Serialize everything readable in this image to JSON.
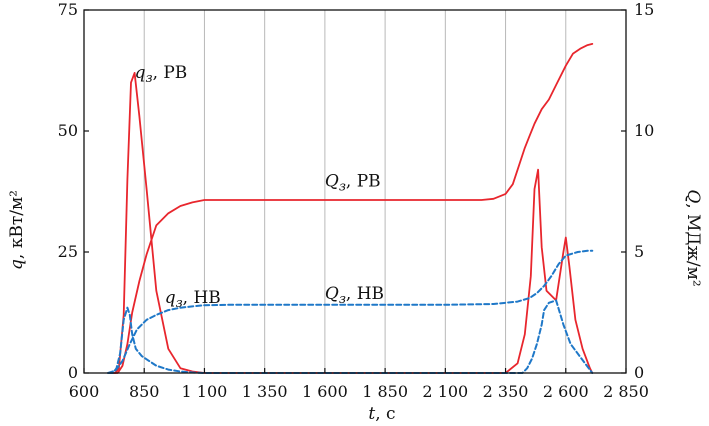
{
  "chart_data": {
    "type": "line",
    "title": "",
    "xlabel": {
      "symbol": "t",
      "unit": ", с"
    },
    "ylabel_left": {
      "symbol": "q",
      "unit": ", кВт/м²"
    },
    "ylabel_right": {
      "symbol": "Q",
      "unit": ", МДж/м²"
    },
    "xlim": [
      600,
      2850
    ],
    "ylim_left": [
      0,
      75
    ],
    "ylim_right": [
      0,
      15
    ],
    "x_ticks": [
      600,
      850,
      1100,
      1350,
      1600,
      1850,
      2100,
      2350,
      2600,
      2850
    ],
    "x_tick_labels": [
      "600",
      "850",
      "1 100",
      "1 350",
      "1 600",
      "1 850",
      "2 100",
      "2 350",
      "2 600",
      "2 850"
    ],
    "y_ticks_left": [
      0,
      25,
      50,
      75
    ],
    "y_ticks_right": [
      0,
      5,
      10,
      15
    ],
    "grid": "vertical",
    "colors": {
      "rv": "#e8262d",
      "nv": "#1f78c8"
    },
    "series": [
      {
        "id": "q_rv",
        "axis": "left",
        "color": "#e8262d",
        "style": "solid",
        "x": [
          700,
          730,
          745,
          765,
          780,
          795,
          810,
          830,
          860,
          900,
          950,
          1000,
          1050,
          1100,
          1150,
          1200,
          1600,
          2100,
          2250,
          2300,
          2350,
          2400,
          2430,
          2455,
          2470,
          2485,
          2500,
          2520,
          2560,
          2590,
          2600,
          2615,
          2640,
          2670,
          2700,
          2710
        ],
        "y": [
          0,
          0,
          1,
          12,
          40,
          60,
          62,
          53,
          38,
          17,
          5,
          1,
          0.3,
          0,
          0,
          0,
          0,
          0,
          0,
          0,
          0,
          2,
          8,
          20,
          38,
          42,
          26,
          17,
          15,
          25,
          28,
          22,
          11,
          5,
          1,
          0
        ]
      },
      {
        "id": "Q_rv",
        "axis": "right",
        "color": "#e8262d",
        "style": "solid",
        "x": [
          700,
          720,
          740,
          760,
          780,
          800,
          830,
          860,
          900,
          950,
          1000,
          1050,
          1100,
          1200,
          1600,
          2100,
          2250,
          2300,
          2350,
          2380,
          2400,
          2430,
          2450,
          2470,
          2500,
          2530,
          2560,
          2600,
          2630,
          2660,
          2690,
          2710
        ],
        "y": [
          0,
          0,
          0,
          0.3,
          1.2,
          2.5,
          3.8,
          4.9,
          6.1,
          6.6,
          6.9,
          7.05,
          7.15,
          7.15,
          7.15,
          7.15,
          7.15,
          7.2,
          7.4,
          7.8,
          8.4,
          9.3,
          9.8,
          10.3,
          10.9,
          11.3,
          11.9,
          12.7,
          13.2,
          13.4,
          13.55,
          13.6
        ]
      },
      {
        "id": "q_nv",
        "axis": "left",
        "color": "#1f78c8",
        "style": "dashed",
        "x": [
          700,
          720,
          735,
          750,
          765,
          780,
          790,
          800,
          815,
          840,
          870,
          900,
          950,
          1000,
          1050,
          1100,
          1200,
          1600,
          2100,
          2350,
          2420,
          2440,
          2460,
          2480,
          2490,
          2500,
          2510,
          2530,
          2560,
          2590,
          2620,
          2680,
          2710
        ],
        "y": [
          0,
          0,
          1,
          4,
          11,
          13.5,
          12,
          8,
          5,
          3.5,
          2.5,
          1.5,
          0.7,
          0.3,
          0.1,
          0,
          0,
          0,
          0,
          0,
          0,
          1,
          3,
          6,
          8,
          10,
          13,
          14.5,
          15,
          10,
          6,
          2,
          0
        ]
      },
      {
        "id": "Q_nv",
        "axis": "right",
        "color": "#1f78c8",
        "style": "dashed",
        "x": [
          700,
          730,
          760,
          790,
          820,
          860,
          900,
          950,
          1000,
          1050,
          1100,
          1200,
          1600,
          2100,
          2300,
          2400,
          2450,
          2480,
          2510,
          2540,
          2570,
          2600,
          2650,
          2690,
          2710
        ],
        "y": [
          0,
          0.1,
          0.5,
          1.2,
          1.8,
          2.2,
          2.4,
          2.6,
          2.7,
          2.75,
          2.8,
          2.82,
          2.82,
          2.82,
          2.85,
          2.95,
          3.1,
          3.3,
          3.6,
          4.0,
          4.5,
          4.85,
          5.0,
          5.05,
          5.05
        ]
      }
    ],
    "annotations": [
      {
        "id": "q_rv",
        "symbol": "q",
        "subscript": "з",
        "text": ", РВ",
        "x": 810,
        "y_left": 61
      },
      {
        "id": "Q_rv",
        "symbol": "Q",
        "subscript": "з",
        "text": ", РВ",
        "x": 1600,
        "y_left": 38.5
      },
      {
        "id": "q_nv",
        "symbol": "q",
        "subscript": "з",
        "text": ", НВ",
        "x": 935,
        "y_left": 14.5
      },
      {
        "id": "Q_nv",
        "symbol": "Q",
        "subscript": "з",
        "text": ", НВ",
        "x": 1600,
        "y_left": 15.3
      }
    ]
  }
}
